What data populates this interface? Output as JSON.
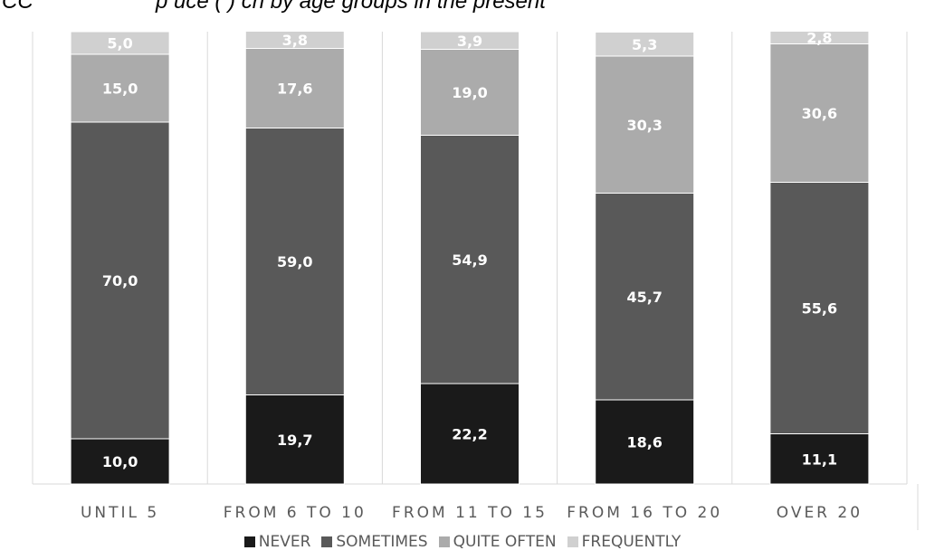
{
  "page_title": {
    "lead": "CC",
    "rest": "p    uce  (  )     ch     by age groups in the present"
  },
  "chart_data": {
    "type": "bar",
    "stacked": true,
    "percent": true,
    "categories": [
      "UNTIL 5",
      "FROM 6 TO 10",
      "FROM 11 TO 15",
      "FROM 16 TO 20",
      "OVER 20"
    ],
    "series": [
      {
        "name": "NEVER",
        "color": "#1a1a1a",
        "values": [
          10.0,
          19.7,
          22.2,
          18.6,
          11.1
        ],
        "labels": [
          "10,0",
          "19,7",
          "22,2",
          "18,6",
          "11,1"
        ]
      },
      {
        "name": "SOMETIMES",
        "color": "#595959",
        "values": [
          70.0,
          59.0,
          54.9,
          45.7,
          55.6
        ],
        "labels": [
          "70,0",
          "59,0",
          "54,9",
          "45,7",
          "55,6"
        ]
      },
      {
        "name": "QUITE OFTEN",
        "color": "#ababab",
        "values": [
          15.0,
          17.6,
          19.0,
          30.3,
          30.6
        ],
        "labels": [
          "15,0",
          "17,6",
          "19,0",
          "30,3",
          "30,6"
        ]
      },
      {
        "name": "FREQUENTLY",
        "color": "#d0d0d0",
        "values": [
          5.0,
          3.8,
          3.9,
          5.3,
          2.8
        ],
        "labels": [
          "5,0",
          "3,8",
          "3,9",
          "5,3",
          "2,8"
        ]
      }
    ],
    "ylim": [
      0,
      100
    ],
    "grid": "vertical separators",
    "legend_position": "bottom"
  }
}
